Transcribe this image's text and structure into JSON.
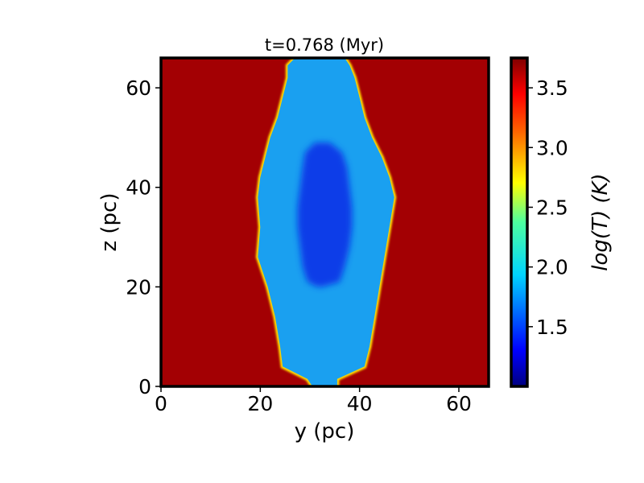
{
  "chart_data": {
    "type": "heatmap",
    "title": "t=0.768 (Myr)",
    "xlabel": "y (pc)",
    "ylabel": "z (pc)",
    "xlim": [
      0,
      66
    ],
    "ylim": [
      0,
      66
    ],
    "x_ticks": [
      0,
      20,
      40,
      60
    ],
    "y_ticks": [
      0,
      20,
      40,
      60
    ],
    "colormap": "jet",
    "colorbar": {
      "label": "log(T) (K)",
      "range": [
        1.0,
        3.75
      ],
      "ticks": [
        "1.5",
        "2.0",
        "2.5",
        "3.0",
        "3.5"
      ],
      "tick_values": [
        1.5,
        2.0,
        2.5,
        3.0,
        3.5
      ]
    },
    "regions": [
      {
        "name": "hot ambient medium",
        "log_T": 3.65,
        "color": "#a00000"
      },
      {
        "name": "cold cloud envelope",
        "log_T": 1.9,
        "color": "#1aa0f0",
        "outline_z": [
          0,
          1.5,
          4,
          8,
          14,
          20,
          26,
          32,
          38,
          42,
          46,
          50,
          54,
          58,
          62,
          64.5,
          66
        ],
        "left_y": [
          30.5,
          29.5,
          24.5,
          24,
          23,
          21.5,
          19.5,
          20,
          19.5,
          20,
          21,
          22,
          23.5,
          24.5,
          25.5,
          25.5,
          27
        ],
        "right_y": [
          35.5,
          35.5,
          41,
          42,
          43,
          44,
          45,
          46,
          47,
          46,
          44.5,
          42.5,
          41,
          40,
          39,
          38,
          37
        ]
      },
      {
        "name": "cold cloud core",
        "log_T": 1.55,
        "color": "#0a3ce8",
        "outline_z": [
          20,
          21,
          24,
          28,
          32,
          36,
          40,
          44,
          47,
          49
        ],
        "left_y": [
          31.5,
          29.5,
          28.5,
          28,
          27.5,
          27.5,
          28,
          28.5,
          29,
          31
        ],
        "right_y": [
          32.5,
          36,
          37,
          38,
          38.5,
          38.5,
          38,
          37.5,
          36.5,
          34
        ]
      }
    ]
  }
}
